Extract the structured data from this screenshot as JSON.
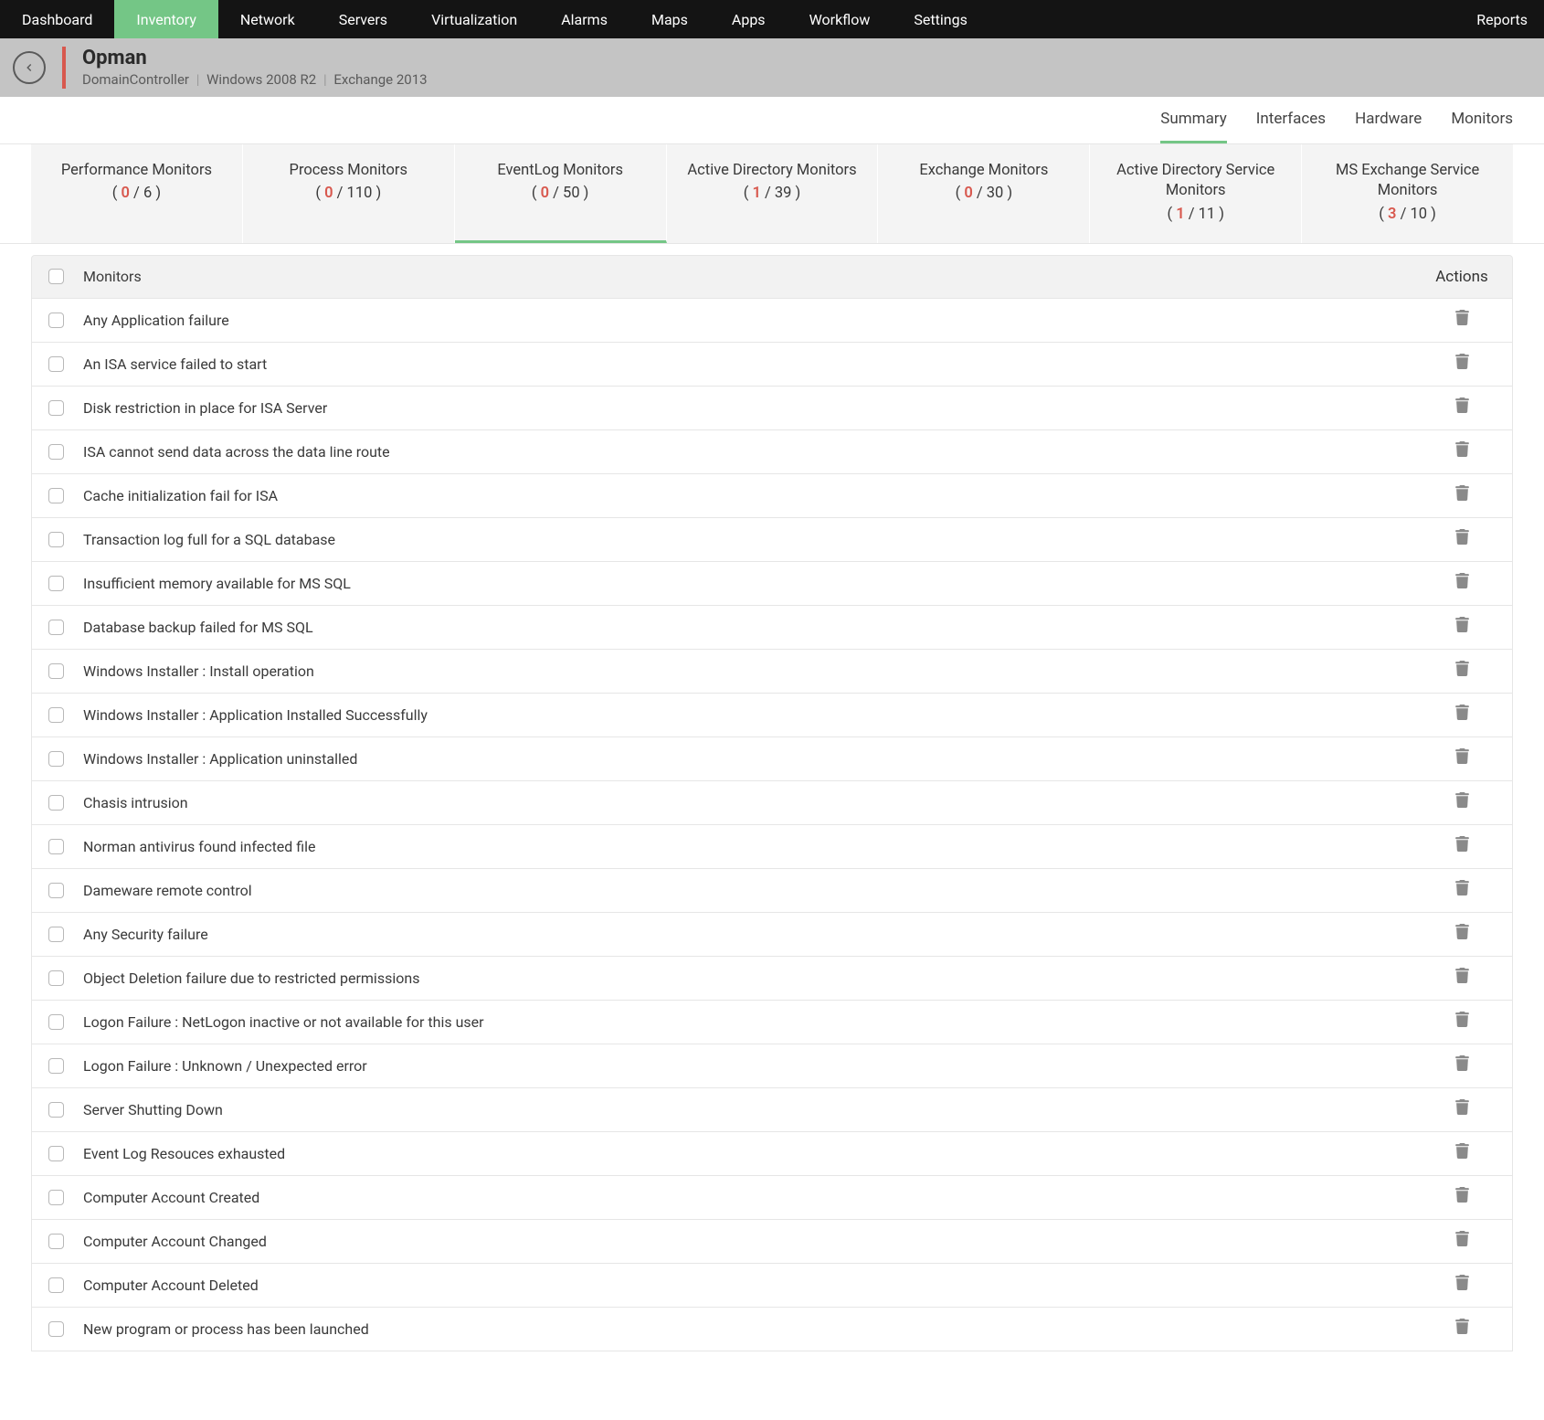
{
  "colors": {
    "topnav_bg": "#141414",
    "active_nav_bg": "#74c686",
    "crumb_bg": "#c4c4c4",
    "accent_red": "#d8584e",
    "card_bg": "#f4f4f4",
    "border": "#e6e6e6",
    "table_head_bg": "#f2f2f2",
    "text": "#3a3a3a",
    "icon_gray": "#8a8a8a"
  },
  "topnav": {
    "items": [
      "Dashboard",
      "Inventory",
      "Network",
      "Servers",
      "Virtualization",
      "Alarms",
      "Maps",
      "Apps",
      "Workflow",
      "Settings",
      "Reports"
    ],
    "active_index": 1
  },
  "breadcrumb": {
    "title": "Opman",
    "sub1": "DomainController",
    "sub2": "Windows 2008 R2",
    "sub3": "Exchange 2013"
  },
  "view_tabs": {
    "items": [
      "Summary",
      "Interfaces",
      "Hardware",
      "Monitors"
    ],
    "active_index": 0
  },
  "monitor_cards": [
    {
      "title": "Performance Monitors",
      "alert": 0,
      "total": 6
    },
    {
      "title": "Process Monitors",
      "alert": 0,
      "total": 110
    },
    {
      "title": "EventLog Monitors",
      "alert": 0,
      "total": 50
    },
    {
      "title": "Active Directory Monitors",
      "alert": 1,
      "total": 39
    },
    {
      "title": "Exchange Monitors",
      "alert": 0,
      "total": 30
    },
    {
      "title": "Active Directory Service Monitors",
      "alert": 1,
      "total": 11
    },
    {
      "title": "MS Exchange Service Monitors",
      "alert": 3,
      "total": 10
    }
  ],
  "monitor_cards_active_index": 2,
  "table": {
    "head_monitors": "Monitors",
    "head_actions": "Actions",
    "rows": [
      "Any Application failure",
      "An ISA service failed to start",
      "Disk restriction in place for ISA Server",
      "ISA cannot send data across the data line route",
      "Cache initialization fail for ISA",
      "Transaction log full for a SQL database",
      "Insufficient memory available for MS SQL",
      "Database backup failed for MS SQL",
      "Windows Installer : Install operation",
      "Windows Installer : Application Installed Successfully",
      "Windows Installer : Application uninstalled",
      "Chasis intrusion",
      "Norman antivirus found infected file",
      "Dameware remote control",
      "Any Security failure",
      "Object Deletion failure due to restricted permissions",
      "Logon Failure : NetLogon inactive or not available for this user",
      "Logon Failure : Unknown / Unexpected error",
      "Server Shutting Down",
      "Event Log Resouces exhausted",
      "Computer Account Created",
      "Computer Account Changed",
      "Computer Account Deleted",
      "New program or process has been launched"
    ]
  }
}
